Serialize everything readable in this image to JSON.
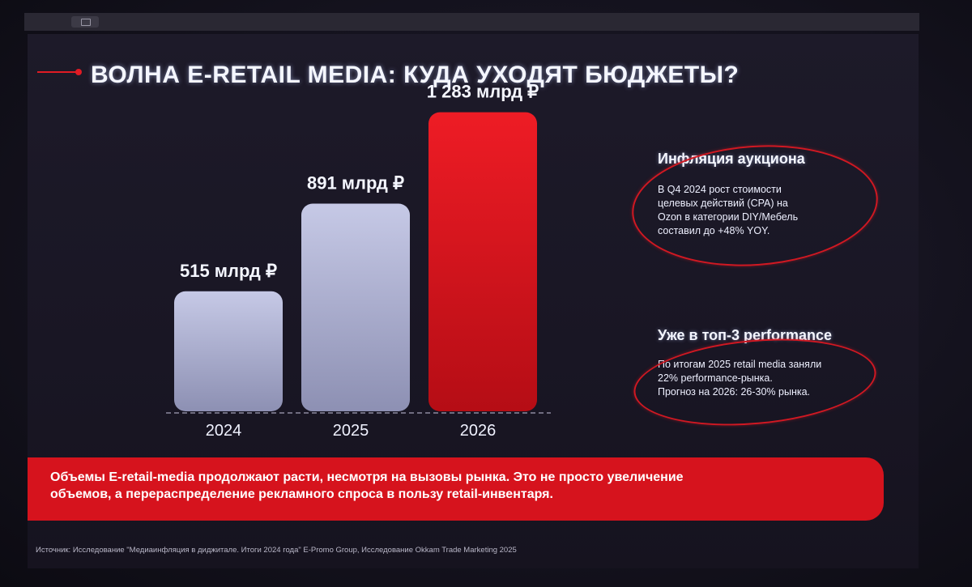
{
  "slide": {
    "title": "ВОЛНА E-RETAIL MEDIA: КУДА УХОДЯТ БЮДЖЕТЫ?",
    "accent_color": "#e01b24"
  },
  "chart_data": {
    "type": "bar",
    "categories": [
      "2024",
      "2025",
      "2026"
    ],
    "values": [
      515,
      891,
      1283
    ],
    "data_labels": [
      "515 млрд ₽",
      "891 млрд ₽",
      "1 283 млрд ₽"
    ],
    "unit": "млрд ₽",
    "ylim": [
      0,
      1400
    ],
    "grid": false,
    "bar_colors": [
      "#b8bcdc",
      "#b8bcdc",
      "#e3121b"
    ]
  },
  "panels": [
    {
      "title": "Инфляция аукциона",
      "lines": [
        "В Q4 2024 рост стоимости",
        "целевых действий (CPA) на",
        "Ozon в категории DIY/Мебель",
        "составил до +48% YOY."
      ]
    },
    {
      "title": "Уже в топ-3 performance",
      "lines": [
        "По итогам 2025 retail media заняли",
        "22% performance-рынка.",
        "Прогноз на 2026: 26-30% рынка."
      ]
    }
  ],
  "banner": {
    "line1": "Объемы E-retail-media продолжают расти, несмотря на вызовы рынка. Это не просто увеличение",
    "line2": "объемов, а перераспределение рекламного спроса в пользу retail-инвентаря."
  },
  "source": "Источник: Исследование \"Медиаинфляция в диджитале. Итоги 2024 года\" E-Promo Group, Исследование Okkam Trade Marketing 2025"
}
